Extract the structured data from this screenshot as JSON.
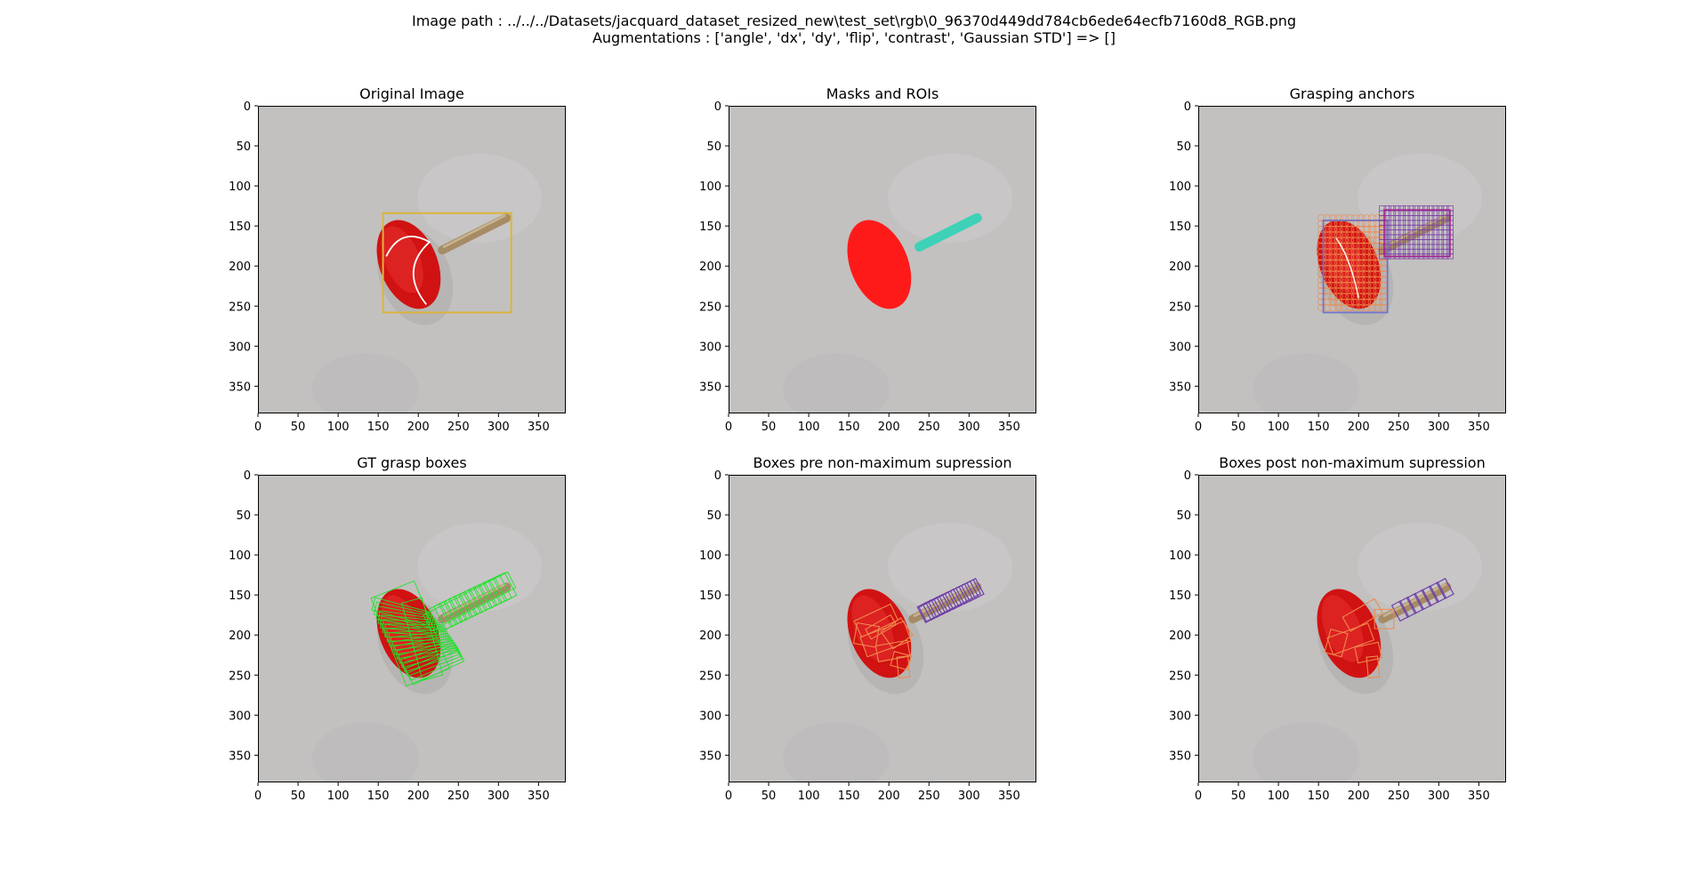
{
  "suptitle": {
    "line1": "Image path : ../../../Datasets/jacquard_dataset_resized_new\\test_set\\rgb\\0_96370d449dd784cb6ede64ecfb7160d8_RGB.png",
    "line2": "Augmentations : ['angle', 'dx', 'dy', 'flip', 'contrast', 'Gaussian STD'] => []"
  },
  "axes_common": {
    "xlim": [
      0,
      384
    ],
    "ylim": [
      384,
      0
    ],
    "xticks": [
      0,
      50,
      100,
      150,
      200,
      250,
      300,
      350
    ],
    "yticks": [
      0,
      50,
      100,
      150,
      200,
      250,
      300,
      350
    ]
  },
  "panels": [
    {
      "title": "Original Image"
    },
    {
      "title": "Masks and ROIs"
    },
    {
      "title": "Grasping anchors"
    },
    {
      "title": "GT grasp boxes"
    },
    {
      "title": "Boxes pre non-maximum supression"
    },
    {
      "title": "Boxes post non-maximum supression"
    }
  ],
  "colors": {
    "background_photo": "#c2c1c0",
    "object_red": "#d11212",
    "mask_red": "#ff1a1a",
    "mask_teal": "#3fd1b8",
    "handle_tan": "#a58c66",
    "roi_gold": "#dbb53a",
    "roi_blue": "#6f75c8",
    "anchor_orange": "#ef8a4d",
    "anchor_purple": "#7a3fa6",
    "gt_green": "#22e22a",
    "box_orange": "#ef8a4d",
    "box_purple": "#6f3fa8"
  }
}
